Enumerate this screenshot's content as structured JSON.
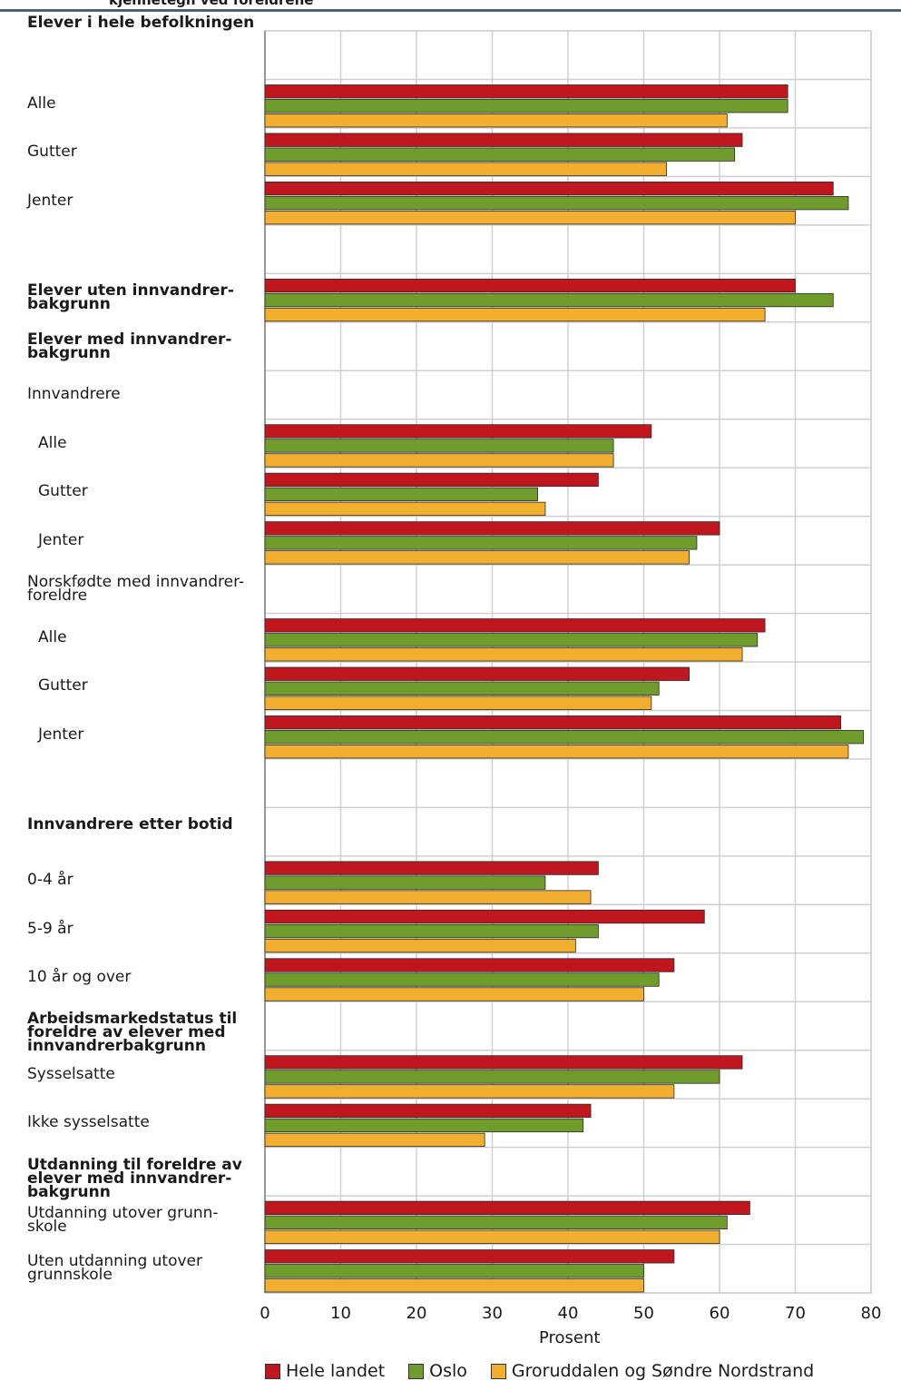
{
  "title_fragment": "kjennetegn ved foreldrene",
  "chart_data": {
    "type": "bar",
    "orientation": "horizontal",
    "xlabel": "Prosent",
    "xlim": [
      0,
      80
    ],
    "xticks": [
      0,
      10,
      20,
      30,
      40,
      50,
      60,
      70,
      80
    ],
    "grid": true,
    "legend_position": "bottom",
    "series": [
      {
        "name": "Hele landet",
        "color": "#c0161e"
      },
      {
        "name": "Oslo",
        "color": "#6f9c2c"
      },
      {
        "name": "Groruddalen og Søndre Nordstrand",
        "color": "#f2ae2e"
      }
    ],
    "rows": [
      {
        "label": "Elever i hele befolkningen",
        "heading": true
      },
      {
        "label": "Alle",
        "values": [
          69,
          69,
          61
        ]
      },
      {
        "label": "Gutter",
        "values": [
          63,
          62,
          53
        ]
      },
      {
        "label": "Jenter",
        "values": [
          75,
          77,
          70
        ]
      },
      {
        "label": "",
        "spacer": true
      },
      {
        "label": "Elever uten innvandrer-\nbakgrunn",
        "heading": true,
        "values": [
          70,
          75,
          66
        ]
      },
      {
        "label": "Elever med innvandrer-\nbakgrunn",
        "heading": true
      },
      {
        "label": "Innvandrere"
      },
      {
        "label": "Alle",
        "indent": true,
        "values": [
          51,
          46,
          46
        ]
      },
      {
        "label": "Gutter",
        "indent": true,
        "values": [
          44,
          36,
          37
        ]
      },
      {
        "label": "Jenter",
        "indent": true,
        "values": [
          60,
          57,
          56
        ]
      },
      {
        "label": "Norskfødte med innvandrer-\nforeldre"
      },
      {
        "label": "Alle",
        "indent": true,
        "values": [
          66,
          65,
          63
        ]
      },
      {
        "label": "Gutter",
        "indent": true,
        "values": [
          56,
          52,
          51
        ]
      },
      {
        "label": "Jenter",
        "indent": true,
        "values": [
          76,
          79,
          77
        ]
      },
      {
        "label": "",
        "spacer": true
      },
      {
        "label": "Innvandrere etter botid",
        "heading": true
      },
      {
        "label": "0-4 år",
        "values": [
          44,
          37,
          43
        ]
      },
      {
        "label": "5-9 år",
        "values": [
          58,
          44,
          41
        ]
      },
      {
        "label": "10 år og over",
        "values": [
          54,
          52,
          50
        ]
      },
      {
        "label": "Arbeidsmarkedstatus til\nforeldre av elever med\ninnvandrerbakgrunn",
        "heading": true
      },
      {
        "label": "Sysselsatte",
        "values": [
          63,
          60,
          54
        ]
      },
      {
        "label": "Ikke sysselsatte",
        "values": [
          43,
          42,
          29
        ]
      },
      {
        "label": "Utdanning til foreldre av\nelever med innvandrer-\nbakgrunn",
        "heading": true
      },
      {
        "label": "Utdanning utover grunn-\nskole",
        "values": [
          64,
          61,
          60
        ]
      },
      {
        "label": "Uten utdanning utover\ngrunnskole",
        "values": [
          54,
          50,
          50
        ]
      }
    ]
  }
}
